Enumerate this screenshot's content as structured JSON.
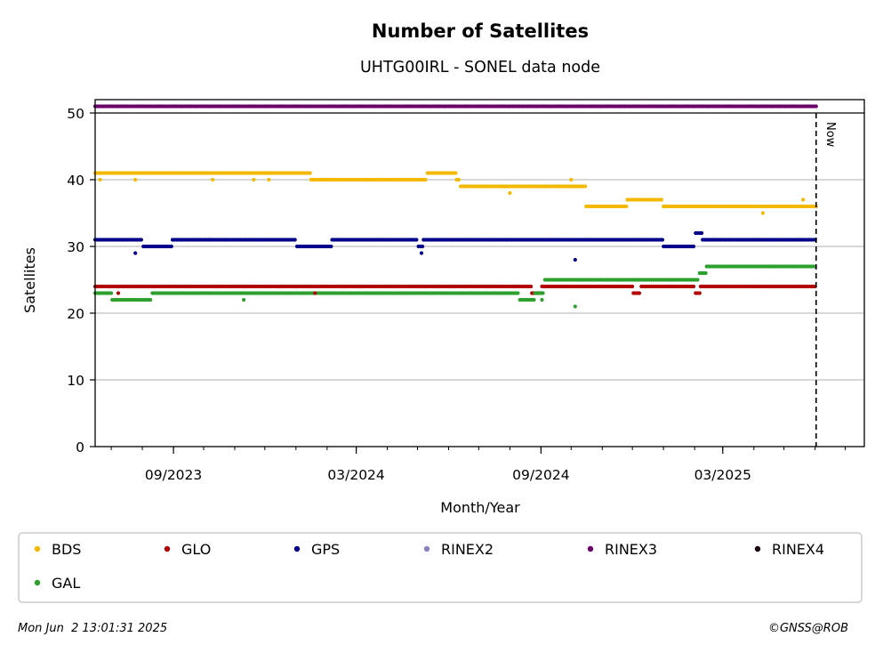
{
  "chart_data": {
    "type": "scatter",
    "title": "Number of Satellites",
    "subtitle": "UHTG00IRL - SONEL data node",
    "xlabel": "Month/Year",
    "ylabel": "Satellites",
    "ylim": [
      0,
      52
    ],
    "xlim": [
      "2023-06-15",
      "2025-07-20"
    ],
    "yticks": [
      "0",
      "10",
      "20",
      "30",
      "40",
      "50"
    ],
    "xticks": [
      {
        "date": "2023-09-01",
        "label": "09/2023"
      },
      {
        "date": "2024-03-01",
        "label": "03/2024"
      },
      {
        "date": "2024-09-01",
        "label": "09/2024"
      },
      {
        "date": "2025-03-01",
        "label": "03/2025"
      }
    ],
    "now_date": "2025-06-02",
    "now_label": "Now",
    "grid": "horizontal",
    "legend_position": "bottom",
    "series": [
      {
        "name": "BDS",
        "color": "#f5b800",
        "segments": [
          {
            "from": "2023-06-15",
            "to": "2024-01-15",
            "value": 41
          },
          {
            "from": "2024-01-16",
            "to": "2024-05-10",
            "value": 40
          },
          {
            "from": "2024-05-11",
            "to": "2024-06-08",
            "value": 41
          },
          {
            "from": "2024-06-09",
            "to": "2024-06-12",
            "value": 40
          },
          {
            "from": "2024-06-13",
            "to": "2024-10-15",
            "value": 39
          },
          {
            "from": "2024-10-16",
            "to": "2024-11-25",
            "value": 36
          },
          {
            "from": "2024-11-26",
            "to": "2024-12-31",
            "value": 37
          },
          {
            "from": "2025-01-01",
            "to": "2025-06-02",
            "value": 36
          }
        ]
      },
      {
        "name": "GLO",
        "color": "#b30000",
        "segments": [
          {
            "from": "2023-06-15",
            "to": "2024-08-22",
            "value": 24
          },
          {
            "from": "2024-08-23",
            "to": "2024-09-01",
            "value": 23
          },
          {
            "from": "2024-09-02",
            "to": "2024-12-01",
            "value": 24
          },
          {
            "from": "2024-12-02",
            "to": "2024-12-09",
            "value": 23
          },
          {
            "from": "2024-12-10",
            "to": "2025-02-01",
            "value": 24
          },
          {
            "from": "2025-02-02",
            "to": "2025-02-06",
            "value": 23
          },
          {
            "from": "2025-02-07",
            "to": "2025-06-02",
            "value": 24
          }
        ]
      },
      {
        "name": "GPS",
        "color": "#00008b",
        "segments": [
          {
            "from": "2023-06-15",
            "to": "2023-08-01",
            "value": 31
          },
          {
            "from": "2023-08-02",
            "to": "2023-08-30",
            "value": 30
          },
          {
            "from": "2023-08-31",
            "to": "2024-01-01",
            "value": 31
          },
          {
            "from": "2024-01-02",
            "to": "2024-02-05",
            "value": 30
          },
          {
            "from": "2024-02-06",
            "to": "2024-05-01",
            "value": 31
          },
          {
            "from": "2024-05-02",
            "to": "2024-05-06",
            "value": 30
          },
          {
            "from": "2024-05-07",
            "to": "2024-12-31",
            "value": 31
          },
          {
            "from": "2025-01-01",
            "to": "2025-02-01",
            "value": 30
          },
          {
            "from": "2025-02-02",
            "to": "2025-02-08",
            "value": 32
          },
          {
            "from": "2025-02-09",
            "to": "2025-06-02",
            "value": 31
          }
        ]
      },
      {
        "name": "RINEX2",
        "color": "#8c7fc0",
        "segments": []
      },
      {
        "name": "RINEX3",
        "color": "#6b006b",
        "segments": [
          {
            "from": "2023-06-15",
            "to": "2025-06-02",
            "value": 51
          }
        ]
      },
      {
        "name": "RINEX4",
        "color": "#1a0010",
        "segments": []
      },
      {
        "name": "GAL",
        "color": "#2ca02c",
        "segments": [
          {
            "from": "2023-06-15",
            "to": "2023-07-01",
            "value": 23
          },
          {
            "from": "2023-07-02",
            "to": "2023-08-10",
            "value": 22
          },
          {
            "from": "2023-08-11",
            "to": "2024-08-10",
            "value": 23
          },
          {
            "from": "2024-08-11",
            "to": "2024-08-25",
            "value": 22
          },
          {
            "from": "2024-08-26",
            "to": "2024-09-04",
            "value": 23
          },
          {
            "from": "2024-09-05",
            "to": "2025-02-05",
            "value": 25
          },
          {
            "from": "2025-02-06",
            "to": "2025-02-12",
            "value": 26
          },
          {
            "from": "2025-02-13",
            "to": "2025-06-02",
            "value": 27
          }
        ]
      }
    ],
    "outliers": [
      {
        "series": "BDS",
        "date": "2023-06-20",
        "value": 40
      },
      {
        "series": "BDS",
        "date": "2023-07-25",
        "value": 40
      },
      {
        "series": "BDS",
        "date": "2023-10-10",
        "value": 40
      },
      {
        "series": "BDS",
        "date": "2023-11-20",
        "value": 40
      },
      {
        "series": "BDS",
        "date": "2023-12-05",
        "value": 40
      },
      {
        "series": "BDS",
        "date": "2024-08-01",
        "value": 38
      },
      {
        "series": "BDS",
        "date": "2024-10-01",
        "value": 40
      },
      {
        "series": "BDS",
        "date": "2025-04-10",
        "value": 35
      },
      {
        "series": "BDS",
        "date": "2025-05-20",
        "value": 37
      },
      {
        "series": "GPS",
        "date": "2023-07-25",
        "value": 29
      },
      {
        "series": "GPS",
        "date": "2024-05-05",
        "value": 29
      },
      {
        "series": "GPS",
        "date": "2024-10-05",
        "value": 28
      },
      {
        "series": "GLO",
        "date": "2023-07-08",
        "value": 23
      },
      {
        "series": "GLO",
        "date": "2024-01-20",
        "value": 23
      },
      {
        "series": "GAL",
        "date": "2023-11-10",
        "value": 22
      },
      {
        "series": "GAL",
        "date": "2024-09-02",
        "value": 22
      },
      {
        "series": "GAL",
        "date": "2024-10-05",
        "value": 21
      }
    ]
  },
  "legend": [
    {
      "label": "BDS",
      "color": "#f5b800"
    },
    {
      "label": "GLO",
      "color": "#b30000"
    },
    {
      "label": "GPS",
      "color": "#00008b"
    },
    {
      "label": "RINEX2",
      "color": "#8c7fc0"
    },
    {
      "label": "RINEX3",
      "color": "#6b006b"
    },
    {
      "label": "RINEX4",
      "color": "#1a0010"
    },
    {
      "label": "GAL",
      "color": "#2ca02c"
    }
  ],
  "footer": {
    "timestamp": "Mon Jun  2 13:01:31 2025",
    "credit": "©GNSS@ROB"
  }
}
